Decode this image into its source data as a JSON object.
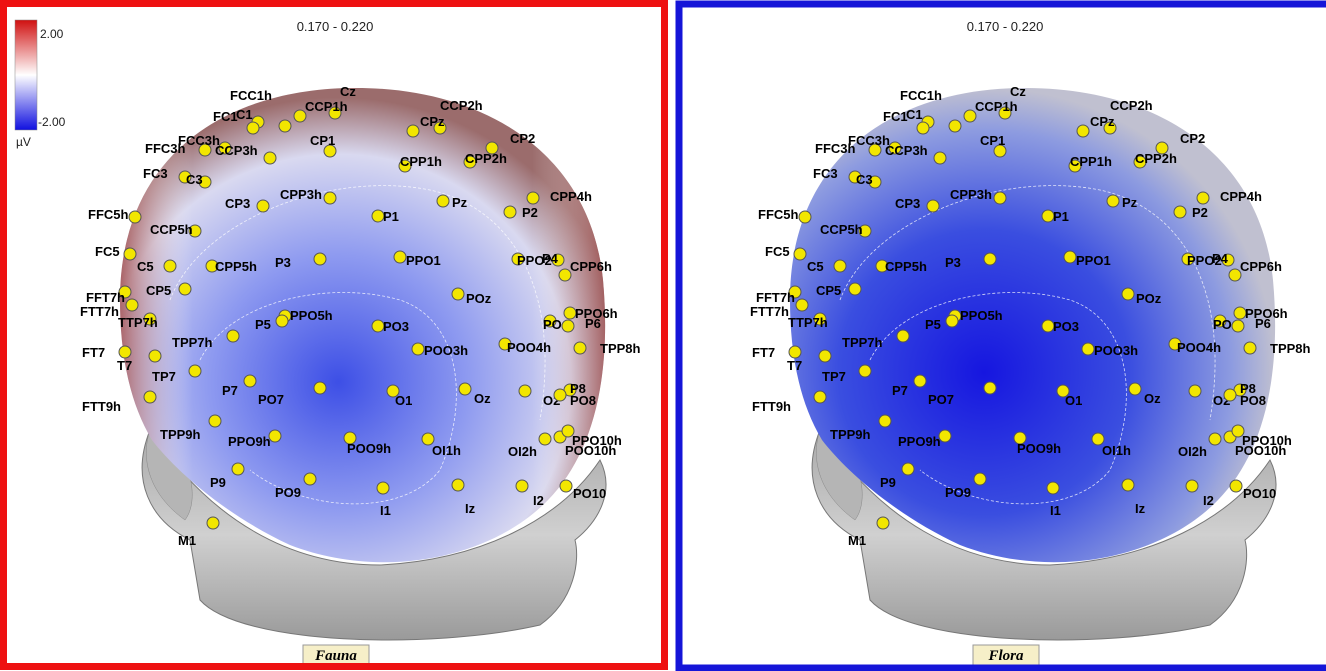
{
  "colorbar": {
    "max": "2.00",
    "min": "-2.00",
    "unit": "µV"
  },
  "panels": [
    {
      "time_window": "0.170 - 0.220",
      "condition": "Fauna",
      "electrodes": [
        "FCC1h",
        "Cz",
        "CCP1h",
        "C1",
        "FC1",
        "CCP2h",
        "CPz",
        "CP2",
        "FFC3h",
        "FCC3h",
        "CCP3h",
        "CP1",
        "CPP1h",
        "CPP2h",
        "FC3",
        "C3",
        "CPP4h",
        "CPP3h",
        "CP3",
        "P1",
        "Pz",
        "P2",
        "FFC5h",
        "CCP5h",
        "FC5",
        "C5",
        "P3",
        "PPO1",
        "PPO2",
        "P4",
        "CPP6h",
        "CPP5h",
        "FFT7h",
        "CP5",
        "POz",
        "FTT7h",
        "TTP7h",
        "PPO5h",
        "P5",
        "PO3",
        "PPO6h",
        "PO4",
        "P6",
        "TPP7h",
        "POO3h",
        "POO4h",
        "TPP8h",
        "FT7",
        "T7",
        "TP7",
        "P7",
        "PO7",
        "O1",
        "Oz",
        "O2",
        "P8",
        "PO8",
        "FTT9h",
        "TPP9h",
        "PPO9h",
        "POO9h",
        "OI1h",
        "OI2h",
        "PPO10h",
        "POO10h",
        "P9",
        "PO9",
        "I1",
        "Iz",
        "I2",
        "PO10",
        "M1"
      ]
    },
    {
      "time_window": "0.170 - 0.220",
      "condition": "Flora",
      "electrodes": [
        "FCC1h",
        "Cz",
        "CCP1h",
        "C1",
        "FC1",
        "CCP2h",
        "CPz",
        "CP2",
        "FFC3h",
        "FCC3h",
        "CCP3h",
        "CP1",
        "CPP1h",
        "CPP2h",
        "FC3",
        "C3",
        "CPP4h",
        "CPP3h",
        "CP3",
        "P1",
        "Pz",
        "P2",
        "FFC5h",
        "CCP5h",
        "FC5",
        "C5",
        "P3",
        "PPO1",
        "PPO2",
        "P4",
        "CPP6h",
        "CPP5h",
        "FFT7h",
        "CP5",
        "POz",
        "FTT7h",
        "TTP7h",
        "PPO5h",
        "P5",
        "PO3",
        "PPO6h",
        "PO4",
        "P6",
        "TPP7h",
        "POO3h",
        "POO4h",
        "TPP8h",
        "FT7",
        "T7",
        "TP7",
        "P7",
        "PO7",
        "O1",
        "Oz",
        "O2",
        "P8",
        "PO8",
        "FTT9h",
        "TPP9h",
        "PPO9h",
        "POO9h",
        "OI1h",
        "OI2h",
        "PPO10h",
        "POO10h",
        "P9",
        "PO9",
        "I1",
        "Iz",
        "I2",
        "PO10",
        "M1"
      ]
    }
  ]
}
